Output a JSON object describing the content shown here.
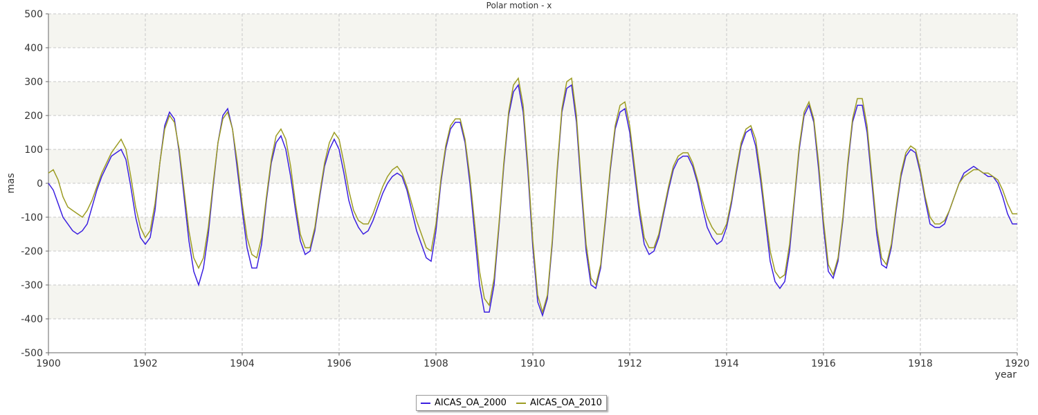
{
  "chart_data": {
    "type": "line",
    "title": "Polar motion - x",
    "xlabel": "year",
    "ylabel": "mas",
    "xlim": [
      1900,
      1920
    ],
    "xticks": [
      1900,
      1902,
      1904,
      1906,
      1908,
      1910,
      1912,
      1914,
      1916,
      1918,
      1920
    ],
    "ylim": [
      -500,
      500
    ],
    "yticks": [
      -500,
      -400,
      -300,
      -200,
      -100,
      0,
      100,
      200,
      300,
      400,
      500
    ],
    "grid": true,
    "legend": "bottom",
    "x": [
      1900,
      1900.1,
      1900.2,
      1900.3,
      1900.4,
      1900.5,
      1900.6,
      1900.7,
      1900.8,
      1900.9,
      1901,
      1901.1,
      1901.2,
      1901.3,
      1901.4,
      1901.5,
      1901.6,
      1901.7,
      1901.8,
      1901.9,
      1902,
      1902.1,
      1902.2,
      1902.3,
      1902.4,
      1902.5,
      1902.6,
      1902.7,
      1902.8,
      1902.9,
      1903,
      1903.1,
      1903.2,
      1903.3,
      1903.4,
      1903.5,
      1903.6,
      1903.7,
      1903.8,
      1903.9,
      1904,
      1904.1,
      1904.2,
      1904.3,
      1904.4,
      1904.5,
      1904.6,
      1904.7,
      1904.8,
      1904.9,
      1905,
      1905.1,
      1905.2,
      1905.3,
      1905.4,
      1905.5,
      1905.6,
      1905.7,
      1905.8,
      1905.9,
      1906,
      1906.1,
      1906.2,
      1906.3,
      1906.4,
      1906.5,
      1906.6,
      1906.7,
      1906.8,
      1906.9,
      1907,
      1907.1,
      1907.2,
      1907.3,
      1907.4,
      1907.5,
      1907.6,
      1907.7,
      1907.8,
      1907.9,
      1908,
      1908.1,
      1908.2,
      1908.3,
      1908.4,
      1908.5,
      1908.6,
      1908.7,
      1908.8,
      1908.9,
      1909,
      1909.1,
      1909.2,
      1909.3,
      1909.4,
      1909.5,
      1909.6,
      1909.7,
      1909.8,
      1909.9,
      1910,
      1910.1,
      1910.2,
      1910.3,
      1910.4,
      1910.5,
      1910.6,
      1910.7,
      1910.8,
      1910.9,
      1911,
      1911.1,
      1911.2,
      1911.3,
      1911.4,
      1911.5,
      1911.6,
      1911.7,
      1911.8,
      1911.9,
      1912,
      1912.1,
      1912.2,
      1912.3,
      1912.4,
      1912.5,
      1912.6,
      1912.7,
      1912.8,
      1912.9,
      1913,
      1913.1,
      1913.2,
      1913.3,
      1913.4,
      1913.5,
      1913.6,
      1913.7,
      1913.8,
      1913.9,
      1914,
      1914.1,
      1914.2,
      1914.3,
      1914.4,
      1914.5,
      1914.6,
      1914.7,
      1914.8,
      1914.9,
      1915,
      1915.1,
      1915.2,
      1915.3,
      1915.4,
      1915.5,
      1915.6,
      1915.7,
      1915.8,
      1915.9,
      1916,
      1916.1,
      1916.2,
      1916.3,
      1916.4,
      1916.5,
      1916.6,
      1916.7,
      1916.8,
      1916.9,
      1917,
      1917.1,
      1917.2,
      1917.3,
      1917.4,
      1917.5,
      1917.6,
      1917.7,
      1917.8,
      1917.9,
      1918,
      1918.1,
      1918.2,
      1918.3,
      1918.4,
      1918.5,
      1918.6,
      1918.7,
      1918.8,
      1918.9,
      1919,
      1919.1,
      1919.2,
      1919.3,
      1919.4,
      1919.5,
      1919.6,
      1919.7,
      1919.8,
      1919.9,
      1920
    ],
    "series": [
      {
        "name": "AICAS_OA_2000",
        "color": "#3b1fe0",
        "values": [
          0,
          -20,
          -60,
          -100,
          -120,
          -140,
          -150,
          -140,
          -120,
          -70,
          -20,
          20,
          50,
          80,
          90,
          100,
          70,
          -10,
          -100,
          -160,
          -180,
          -160,
          -80,
          60,
          170,
          210,
          190,
          90,
          -40,
          -170,
          -260,
          -300,
          -250,
          -150,
          -10,
          120,
          200,
          220,
          160,
          40,
          -80,
          -190,
          -250,
          -250,
          -180,
          -50,
          60,
          120,
          140,
          100,
          20,
          -80,
          -170,
          -210,
          -200,
          -140,
          -40,
          50,
          100,
          130,
          100,
          30,
          -50,
          -100,
          -130,
          -150,
          -140,
          -110,
          -70,
          -30,
          0,
          20,
          30,
          20,
          -20,
          -80,
          -140,
          -180,
          -220,
          -230,
          -140,
          0,
          100,
          160,
          180,
          180,
          120,
          0,
          -150,
          -300,
          -380,
          -380,
          -300,
          -130,
          50,
          200,
          270,
          290,
          210,
          30,
          -190,
          -350,
          -390,
          -340,
          -180,
          30,
          210,
          280,
          290,
          180,
          -20,
          -200,
          -300,
          -310,
          -250,
          -110,
          40,
          160,
          210,
          220,
          150,
          30,
          -90,
          -180,
          -210,
          -200,
          -160,
          -90,
          -20,
          40,
          70,
          80,
          80,
          50,
          0,
          -70,
          -130,
          -160,
          -180,
          -170,
          -130,
          -60,
          30,
          110,
          150,
          160,
          110,
          10,
          -110,
          -230,
          -290,
          -310,
          -290,
          -200,
          -50,
          100,
          200,
          230,
          180,
          40,
          -130,
          -260,
          -280,
          -230,
          -110,
          50,
          180,
          230,
          230,
          150,
          0,
          -150,
          -240,
          -250,
          -190,
          -80,
          20,
          80,
          100,
          90,
          30,
          -50,
          -120,
          -130,
          -130,
          -120,
          -80,
          -40,
          0,
          30,
          40,
          50,
          40,
          30,
          20,
          20,
          0,
          -40,
          -90,
          -120,
          -120
        ]
      },
      {
        "name": "AICAS_OA_2010",
        "color": "#9c9c22",
        "values": [
          30,
          40,
          10,
          -40,
          -70,
          -80,
          -90,
          -100,
          -80,
          -50,
          -10,
          30,
          60,
          90,
          110,
          130,
          100,
          20,
          -70,
          -130,
          -160,
          -140,
          -60,
          60,
          160,
          200,
          180,
          100,
          -20,
          -140,
          -220,
          -250,
          -220,
          -130,
          0,
          120,
          190,
          210,
          160,
          60,
          -60,
          -160,
          -210,
          -220,
          -160,
          -40,
          70,
          140,
          160,
          130,
          50,
          -60,
          -150,
          -190,
          -190,
          -130,
          -30,
          60,
          120,
          150,
          130,
          60,
          -20,
          -80,
          -110,
          -120,
          -120,
          -90,
          -50,
          -10,
          20,
          40,
          50,
          30,
          -10,
          -60,
          -110,
          -150,
          -190,
          -200,
          -120,
          10,
          110,
          170,
          190,
          190,
          130,
          20,
          -120,
          -260,
          -340,
          -360,
          -280,
          -120,
          60,
          210,
          290,
          310,
          230,
          50,
          -170,
          -330,
          -380,
          -330,
          -170,
          40,
          220,
          300,
          310,
          200,
          0,
          -180,
          -280,
          -300,
          -240,
          -100,
          50,
          170,
          230,
          240,
          170,
          50,
          -70,
          -160,
          -190,
          -190,
          -150,
          -80,
          -10,
          50,
          80,
          90,
          90,
          60,
          10,
          -50,
          -100,
          -130,
          -150,
          -150,
          -120,
          -50,
          40,
          120,
          160,
          170,
          130,
          30,
          -90,
          -200,
          -260,
          -280,
          -270,
          -180,
          -40,
          110,
          210,
          240,
          190,
          60,
          -110,
          -240,
          -270,
          -220,
          -100,
          60,
          190,
          250,
          250,
          170,
          20,
          -130,
          -220,
          -240,
          -180,
          -70,
          30,
          90,
          110,
          100,
          40,
          -40,
          -100,
          -120,
          -120,
          -110,
          -80,
          -40,
          0,
          20,
          30,
          40,
          40,
          30,
          30,
          20,
          10,
          -20,
          -60,
          -90,
          -90
        ]
      }
    ]
  }
}
